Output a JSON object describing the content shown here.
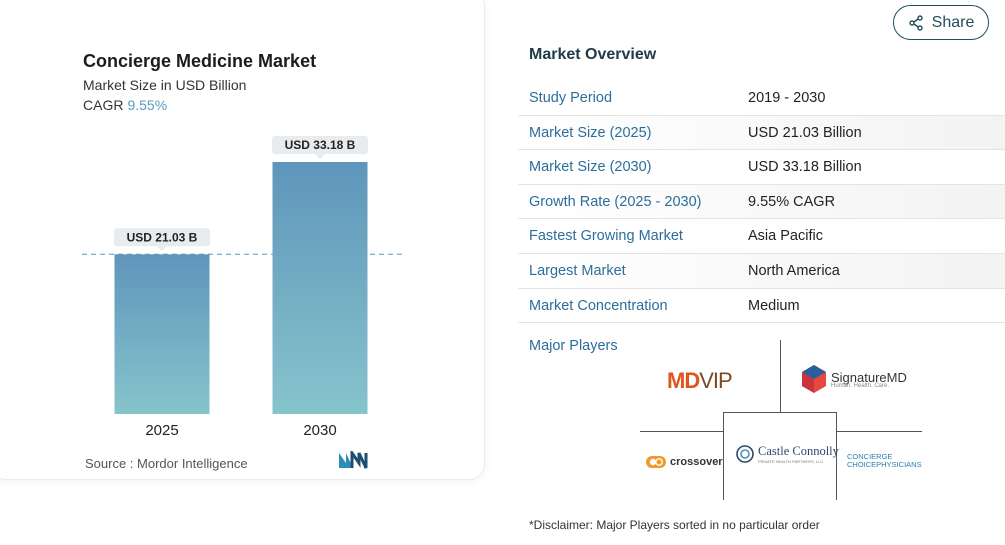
{
  "chart_data": {
    "type": "bar",
    "title": "Concierge Medicine Market",
    "subtitle": "Market Size in USD Billion",
    "cagr_label": "CAGR",
    "cagr_value": "9.55%",
    "categories": [
      "2025",
      "2030"
    ],
    "values": [
      21.03,
      33.18
    ],
    "data_labels": [
      "USD 21.03 B",
      "USD 33.18 B"
    ],
    "ylim": [
      0,
      33.18
    ],
    "grid": false,
    "reference_line": "dashed line at first bar value",
    "bar_gradient": [
      "#5f95bb",
      "#86c4cc"
    ],
    "source": "Source :  Mordor Intelligence"
  },
  "share": {
    "label": "Share"
  },
  "overview": {
    "title": "Market Overview",
    "rows": [
      {
        "label": "Study Period",
        "value": "2019 - 2030"
      },
      {
        "label": "Market Size (2025)",
        "value": "USD 21.03 Billion"
      },
      {
        "label": "Market Size (2030)",
        "value": "USD 33.18 Billion"
      },
      {
        "label": "Growth Rate (2025 - 2030)",
        "value": "9.55% CAGR"
      },
      {
        "label": "Fastest Growing Market",
        "value": "Asia Pacific"
      },
      {
        "label": "Largest Market",
        "value": "North America"
      },
      {
        "label": "Market Concentration",
        "value": "Medium"
      }
    ]
  },
  "players": {
    "label": "Major Players",
    "logos": {
      "mdvip_md": "MD",
      "mdvip_vip": "VIP",
      "signature_name": "SignatureMD",
      "signature_tag": "Human. Health. Care.",
      "crossover": "crossover",
      "castle_name": "Castle Connolly",
      "castle_tag": "PRIVATE HEALTH PARTNERS, LLC",
      "ccp_line1": "CONCIERGE",
      "ccp_line2": "CHOICEPHYSICIANS"
    }
  },
  "disclaimer": "*Disclaimer: Major Players sorted in no particular order",
  "colors": {
    "accent_blue": "#2c6e9b",
    "cagr_blue": "#5b9bbf",
    "bar_top": "#5f95bb",
    "bar_bottom": "#86c4cc",
    "label_bg": "#e9ecef"
  }
}
